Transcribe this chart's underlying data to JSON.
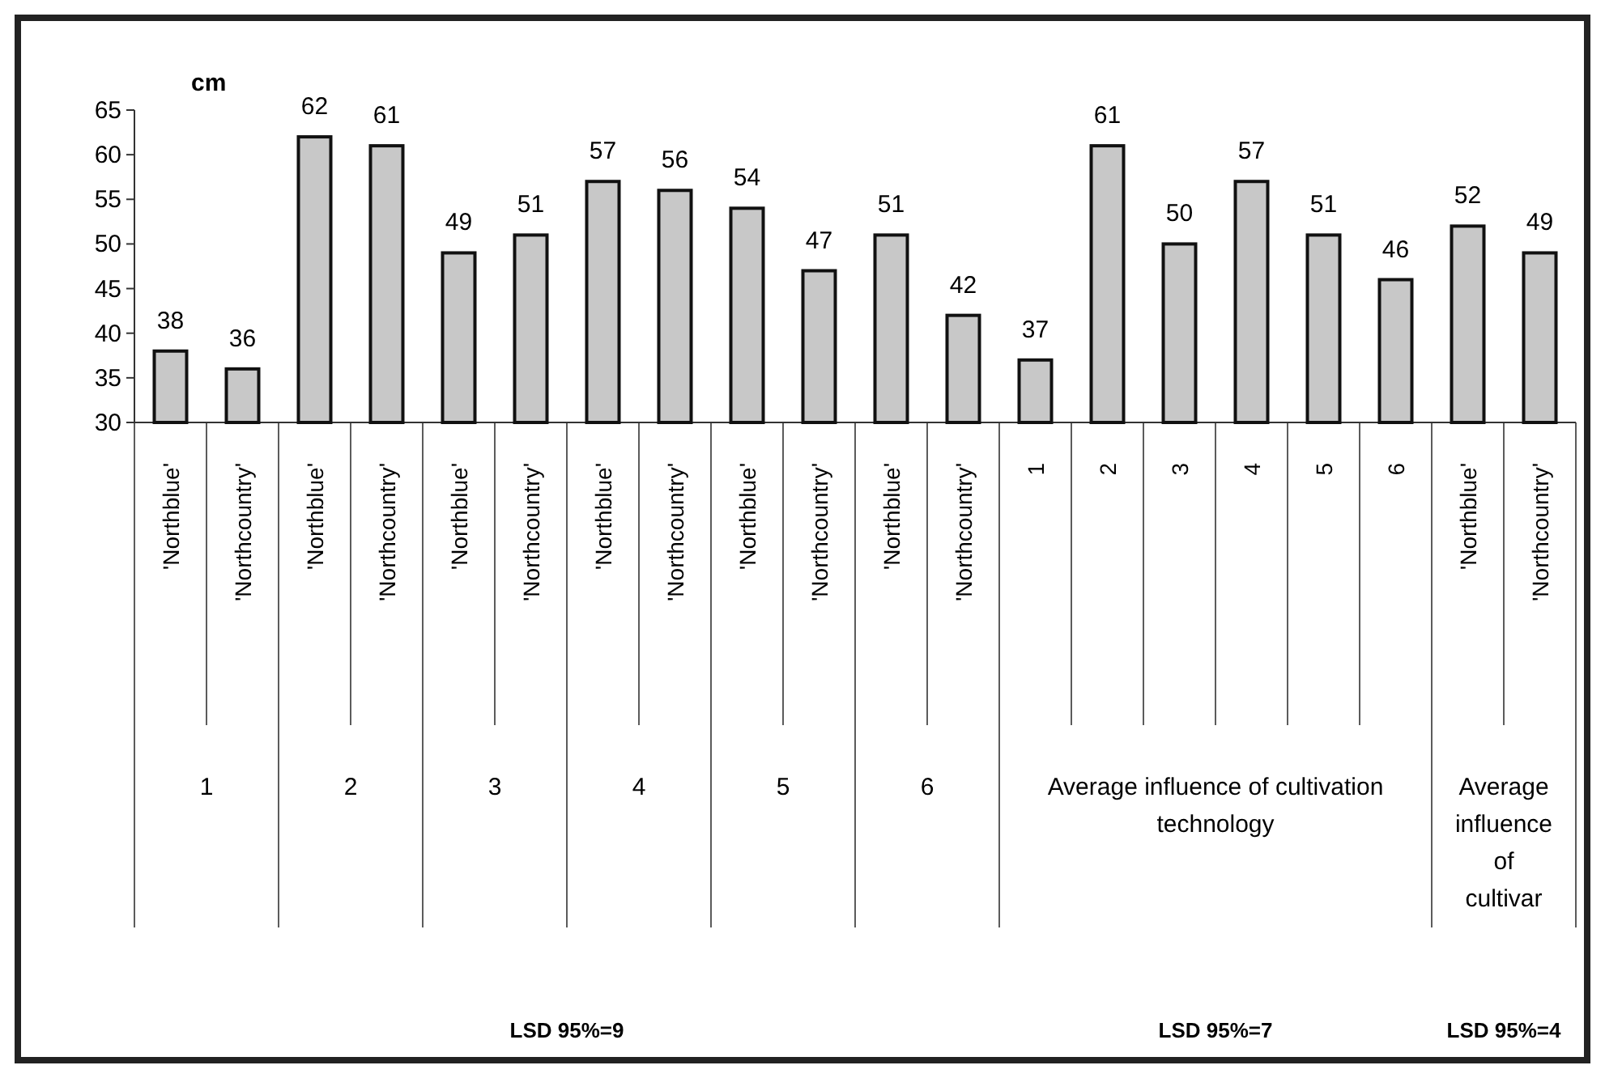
{
  "chart_data": {
    "type": "bar",
    "ylabel": "cm",
    "categories": [
      "'Northblue'",
      "'Northcountry'",
      "'Northblue'",
      "'Northcountry'",
      "'Northblue'",
      "'Northcountry'",
      "'Northblue'",
      "'Northcountry'",
      "'Northblue'",
      "'Northcountry'",
      "'Northblue'",
      "'Northcountry'",
      "1",
      "2",
      "3",
      "4",
      "5",
      "6",
      "'Northblue'",
      "'Northcountry'"
    ],
    "values": [
      38,
      36,
      62,
      61,
      49,
      51,
      57,
      56,
      54,
      47,
      51,
      42,
      37,
      61,
      50,
      57,
      51,
      46,
      52,
      49
    ],
    "color": "#c8c8c8",
    "data_labels": true,
    "ylim": [
      30,
      65
    ],
    "yticks": [
      30,
      35,
      40,
      45,
      50,
      55,
      60,
      65
    ],
    "grid": false,
    "annotations": [
      "1",
      "2",
      "3",
      "4",
      "5",
      "6",
      "Average influence of cultivation technology",
      "Average influence of cultivar",
      "LSD 95%=9",
      "LSD 95%=7",
      "LSD 95%=4"
    ]
  }
}
